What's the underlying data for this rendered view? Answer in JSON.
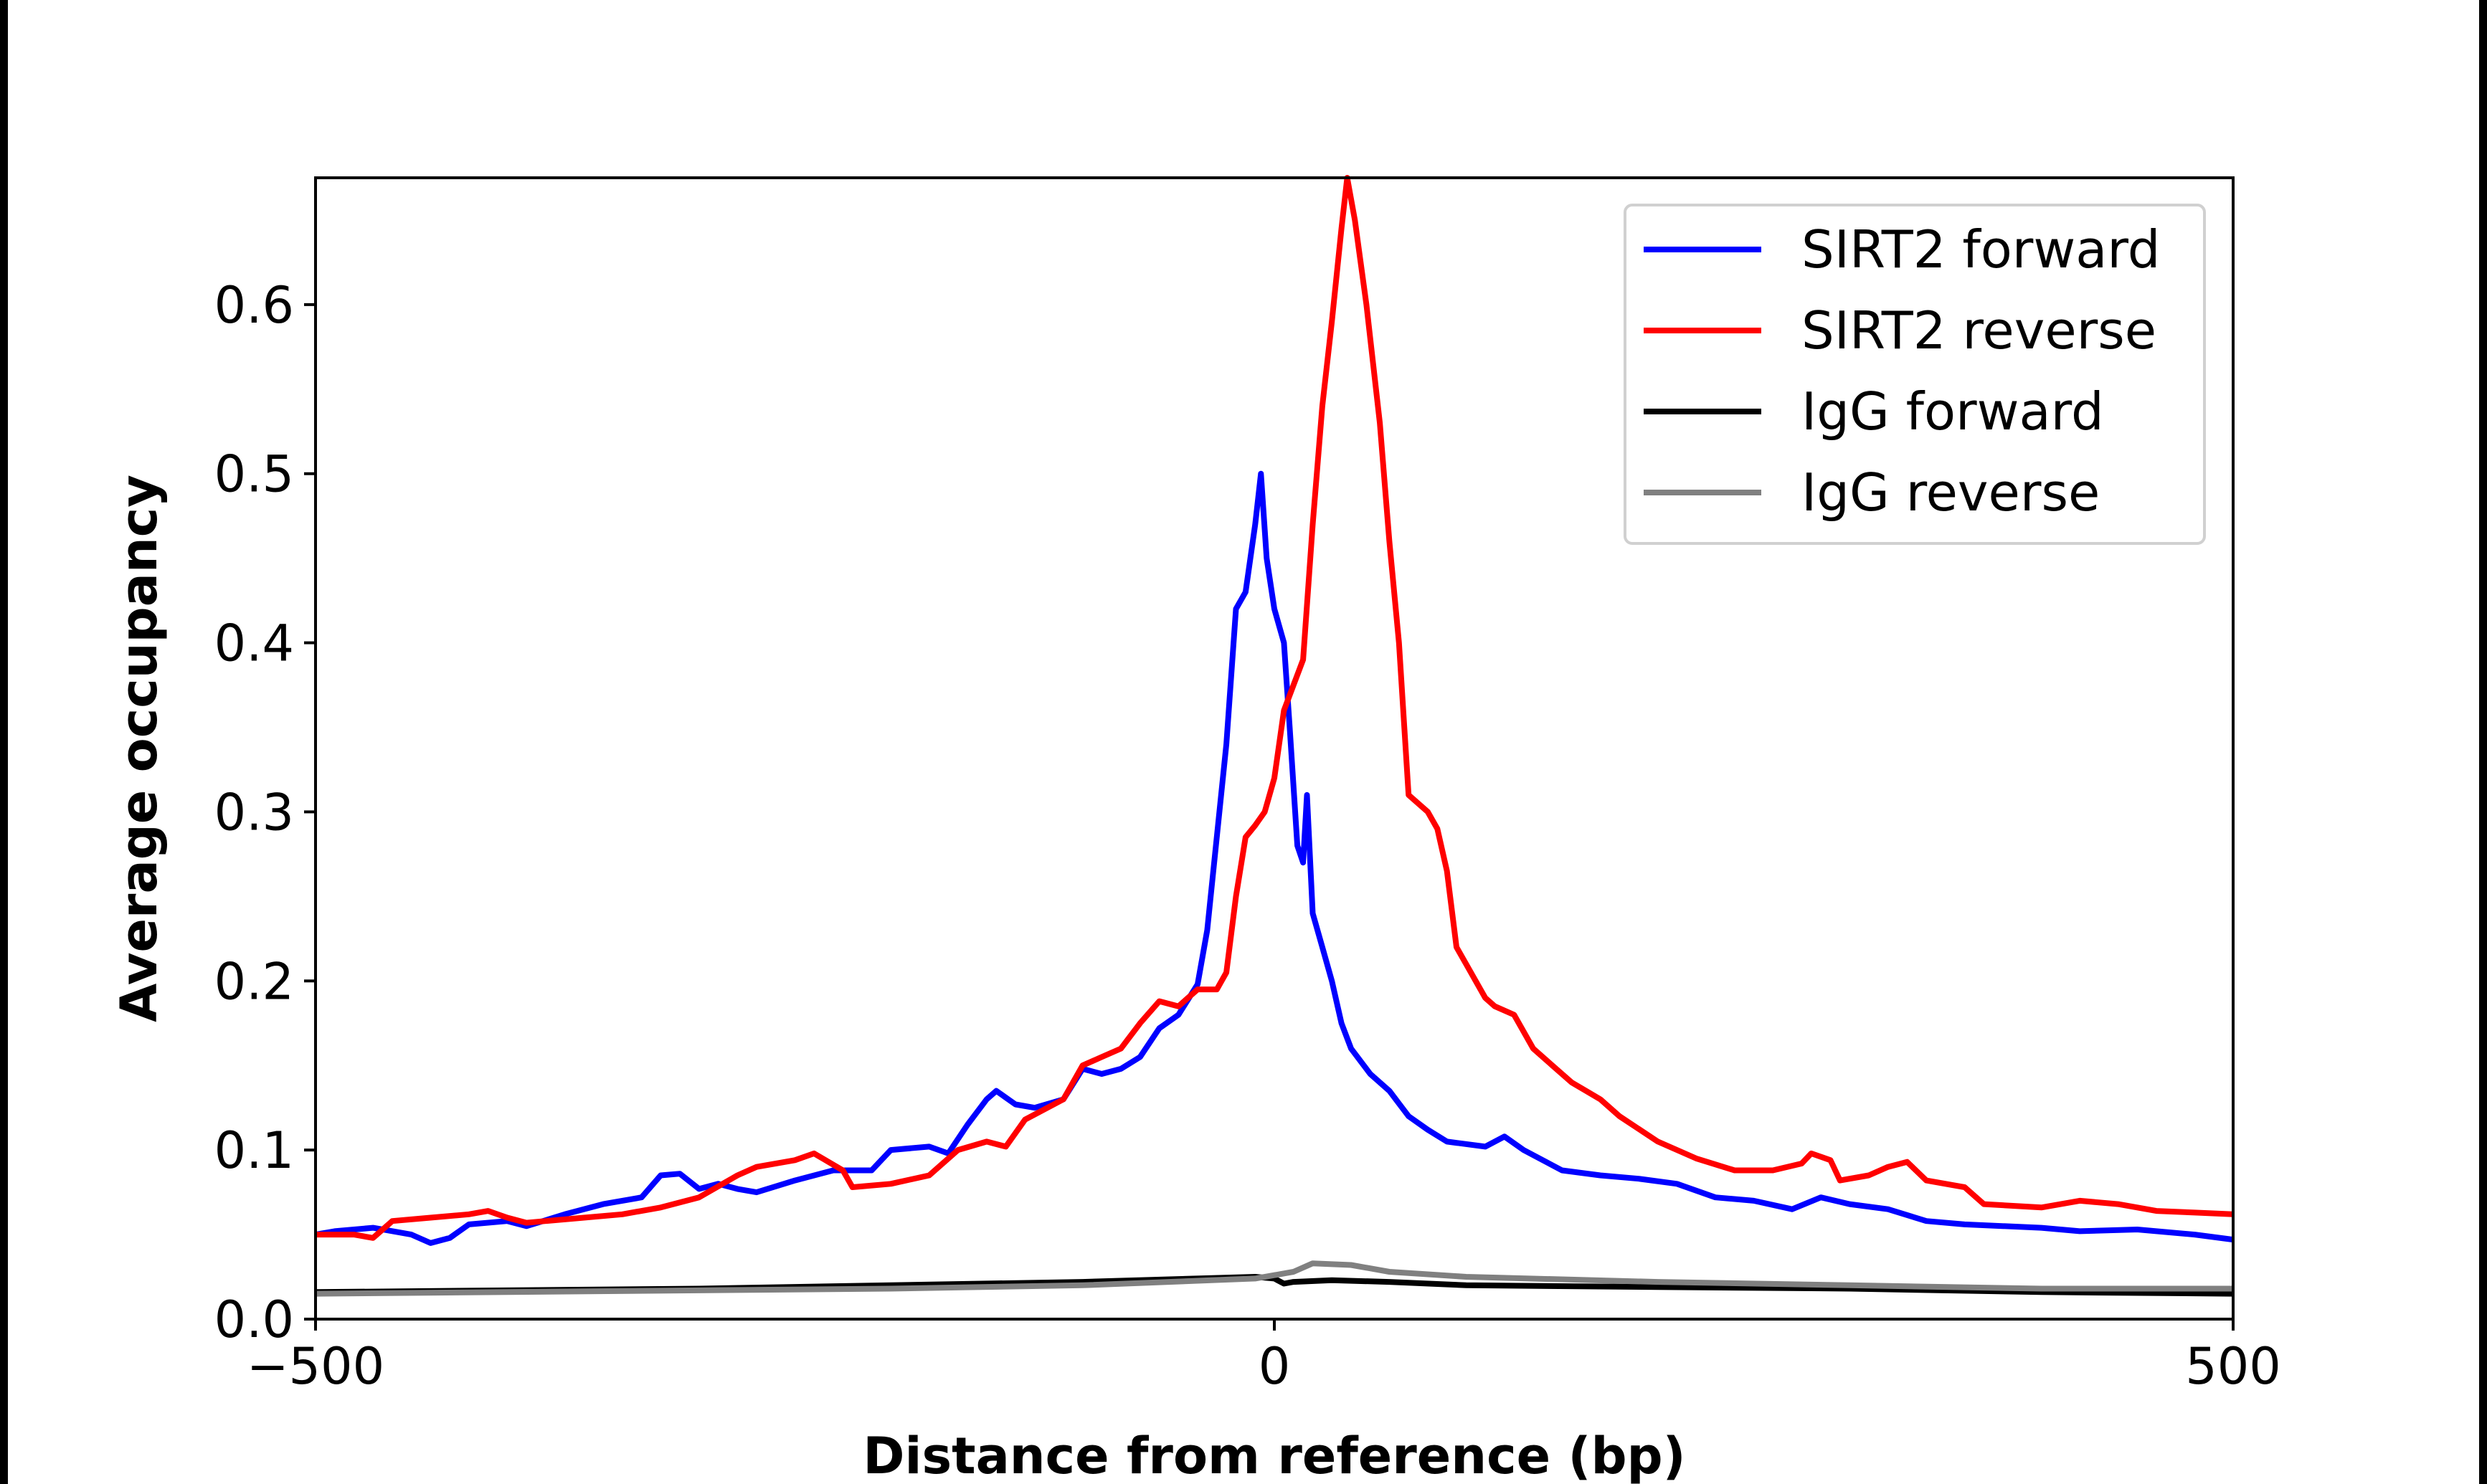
{
  "chart_data": {
    "type": "line",
    "title": "",
    "xlabel": "Distance from reference (bp)",
    "ylabel": "Average occupancy",
    "xlim": [
      -500,
      500
    ],
    "ylim": [
      0,
      0.675
    ],
    "xticks": [
      -500,
      0,
      500
    ],
    "xtick_labels": [
      "−500",
      "0",
      "500"
    ],
    "yticks": [
      0.0,
      0.1,
      0.2,
      0.3,
      0.4,
      0.5,
      0.6
    ],
    "ytick_labels": [
      "0.0",
      "0.1",
      "0.2",
      "0.3",
      "0.4",
      "0.5",
      "0.6"
    ],
    "grid": false,
    "legend_position": "top-right",
    "series": [
      {
        "name": "SIRT2 forward",
        "color": "#0000ff",
        "x": [
          -500,
          -490,
          -470,
          -450,
          -440,
          -430,
          -420,
          -400,
          -390,
          -370,
          -350,
          -330,
          -320,
          -310,
          -300,
          -290,
          -280,
          -270,
          -250,
          -230,
          -210,
          -200,
          -180,
          -170,
          -160,
          -150,
          -145,
          -135,
          -125,
          -110,
          -100,
          -90,
          -80,
          -70,
          -60,
          -50,
          -40,
          -35,
          -25,
          -20,
          -15,
          -10,
          -7,
          -4,
          0,
          5,
          8,
          12,
          15,
          17,
          20,
          25,
          30,
          35,
          40,
          50,
          60,
          70,
          80,
          90,
          110,
          120,
          130,
          150,
          170,
          190,
          210,
          230,
          250,
          270,
          285,
          300,
          320,
          340,
          360,
          400,
          420,
          450,
          480,
          500
        ],
        "y": [
          0.05,
          0.052,
          0.054,
          0.05,
          0.045,
          0.048,
          0.056,
          0.058,
          0.055,
          0.062,
          0.068,
          0.072,
          0.085,
          0.086,
          0.077,
          0.08,
          0.077,
          0.075,
          0.082,
          0.088,
          0.088,
          0.1,
          0.102,
          0.098,
          0.115,
          0.13,
          0.135,
          0.127,
          0.125,
          0.13,
          0.148,
          0.145,
          0.148,
          0.155,
          0.172,
          0.18,
          0.198,
          0.23,
          0.34,
          0.42,
          0.43,
          0.47,
          0.5,
          0.45,
          0.42,
          0.4,
          0.35,
          0.28,
          0.27,
          0.31,
          0.24,
          0.22,
          0.2,
          0.175,
          0.16,
          0.145,
          0.135,
          0.12,
          0.112,
          0.105,
          0.102,
          0.108,
          0.1,
          0.088,
          0.085,
          0.083,
          0.08,
          0.072,
          0.07,
          0.065,
          0.072,
          0.068,
          0.065,
          0.058,
          0.056,
          0.054,
          0.052,
          0.053,
          0.05,
          0.047
        ]
      },
      {
        "name": "SIRT2 reverse",
        "color": "#ff0000",
        "x": [
          -500,
          -480,
          -470,
          -460,
          -440,
          -420,
          -410,
          -400,
          -390,
          -380,
          -360,
          -340,
          -320,
          -300,
          -280,
          -270,
          -250,
          -240,
          -225,
          -220,
          -200,
          -180,
          -165,
          -150,
          -140,
          -130,
          -110,
          -100,
          -90,
          -80,
          -70,
          -60,
          -50,
          -40,
          -30,
          -25,
          -20,
          -15,
          -10,
          -5,
          0,
          5,
          15,
          20,
          25,
          30,
          35,
          38,
          42,
          48,
          55,
          60,
          65,
          70,
          80,
          85,
          90,
          95,
          100,
          110,
          115,
          125,
          135,
          145,
          155,
          170,
          180,
          200,
          220,
          240,
          260,
          275,
          280,
          290,
          295,
          310,
          320,
          330,
          340,
          360,
          370,
          400,
          420,
          440,
          460,
          480,
          500
        ],
        "y": [
          0.05,
          0.05,
          0.048,
          0.058,
          0.06,
          0.062,
          0.064,
          0.06,
          0.057,
          0.058,
          0.06,
          0.062,
          0.066,
          0.072,
          0.085,
          0.09,
          0.094,
          0.098,
          0.088,
          0.078,
          0.08,
          0.085,
          0.1,
          0.105,
          0.102,
          0.118,
          0.13,
          0.15,
          0.155,
          0.16,
          0.175,
          0.188,
          0.185,
          0.195,
          0.195,
          0.205,
          0.25,
          0.285,
          0.292,
          0.3,
          0.32,
          0.36,
          0.39,
          0.47,
          0.54,
          0.59,
          0.645,
          0.675,
          0.65,
          0.6,
          0.53,
          0.46,
          0.4,
          0.31,
          0.3,
          0.29,
          0.265,
          0.22,
          0.21,
          0.19,
          0.185,
          0.18,
          0.16,
          0.15,
          0.14,
          0.13,
          0.12,
          0.105,
          0.095,
          0.088,
          0.088,
          0.092,
          0.098,
          0.094,
          0.082,
          0.085,
          0.09,
          0.093,
          0.082,
          0.078,
          0.068,
          0.066,
          0.07,
          0.068,
          0.064,
          0.063,
          0.062
        ]
      },
      {
        "name": "IgG forward",
        "color": "#000000",
        "x": [
          -500,
          -400,
          -300,
          -200,
          -100,
          -10,
          0,
          5,
          10,
          30,
          60,
          100,
          200,
          300,
          400,
          500
        ],
        "y": [
          0.016,
          0.017,
          0.018,
          0.02,
          0.022,
          0.025,
          0.024,
          0.021,
          0.022,
          0.023,
          0.022,
          0.02,
          0.019,
          0.018,
          0.016,
          0.015
        ]
      },
      {
        "name": "IgG reverse",
        "color": "#808080",
        "x": [
          -500,
          -400,
          -300,
          -200,
          -100,
          -10,
          10,
          20,
          40,
          60,
          100,
          200,
          300,
          400,
          500
        ],
        "y": [
          0.015,
          0.016,
          0.017,
          0.018,
          0.02,
          0.024,
          0.028,
          0.033,
          0.032,
          0.028,
          0.025,
          0.022,
          0.02,
          0.018,
          0.018
        ]
      }
    ]
  }
}
